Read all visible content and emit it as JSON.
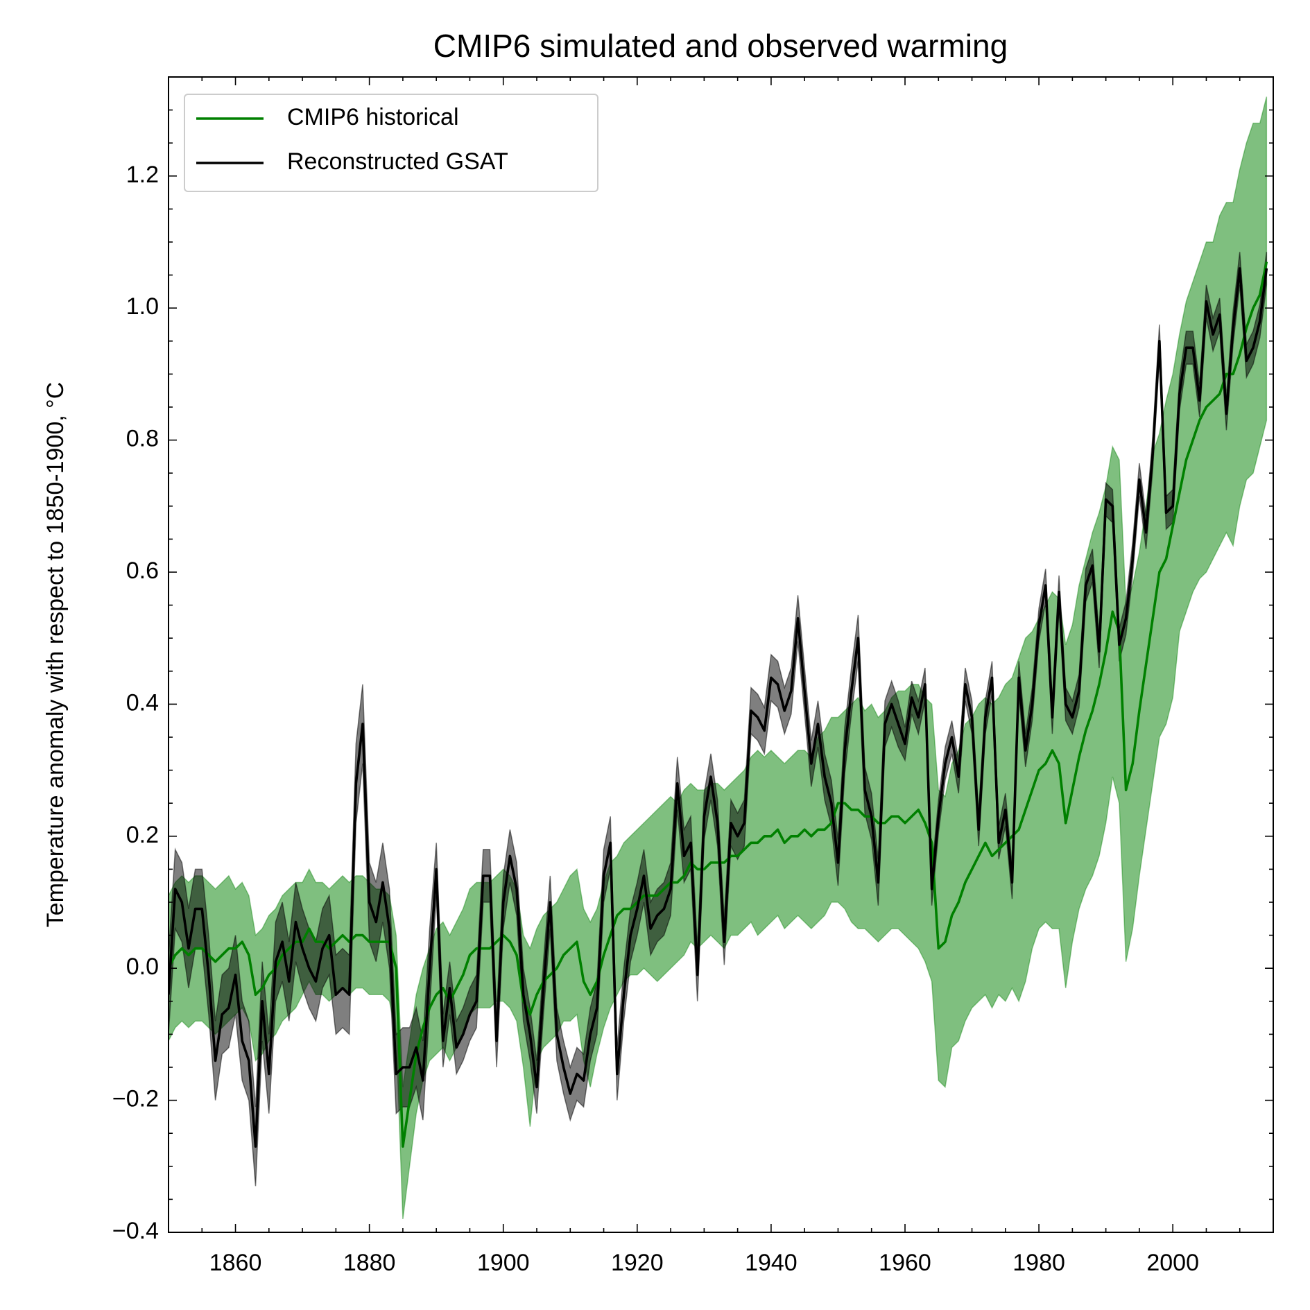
{
  "chart_data": {
    "type": "line",
    "title": "CMIP6 simulated and observed warming",
    "y_label": "Temperature anomaly with respect to 1850-1900, °C",
    "legend": "upper left",
    "xlim": [
      1850,
      2015
    ],
    "xticks": [
      1860,
      1880,
      1900,
      1920,
      1940,
      1960,
      1980,
      2000
    ],
    "xminorticks": [
      1850,
      1855,
      1865,
      1870,
      1875,
      1885,
      1890,
      1895,
      1905,
      1910,
      1915,
      1925,
      1930,
      1935,
      1945,
      1950,
      1955,
      1965,
      1970,
      1975,
      1985,
      1990,
      1995,
      2005,
      2010,
      2015
    ],
    "ylim": [
      -0.4,
      1.35
    ],
    "yticks": [
      {
        "value": -0.4,
        "label": "−0.4"
      },
      {
        "value": -0.2,
        "label": "−0.2"
      },
      {
        "value": 0,
        "label": "0.0"
      },
      0.2,
      0.4,
      0.6,
      0.8,
      {
        "value": 1,
        "label": "1.0"
      },
      1.2
    ],
    "yminorticks": [
      -0.35,
      -0.3,
      -0.25,
      -0.15,
      -0.1,
      -0.05,
      0.05,
      0.1,
      0.15,
      0.25,
      0.3,
      0.35,
      0.45,
      0.5,
      0.55,
      0.65,
      0.7,
      0.75,
      0.85,
      0.9,
      0.95,
      1.05,
      1.1,
      1.15,
      1.25,
      1.3,
      1.35
    ],
    "x": [
      1850,
      1851,
      1852,
      1853,
      1854,
      1855,
      1856,
      1857,
      1858,
      1859,
      1860,
      1861,
      1862,
      1863,
      1864,
      1865,
      1866,
      1867,
      1868,
      1869,
      1870,
      1871,
      1872,
      1873,
      1874,
      1875,
      1876,
      1877,
      1878,
      1879,
      1880,
      1881,
      1882,
      1883,
      1884,
      1885,
      1886,
      1887,
      1888,
      1889,
      1890,
      1891,
      1892,
      1893,
      1894,
      1895,
      1896,
      1897,
      1898,
      1899,
      1900,
      1901,
      1902,
      1903,
      1904,
      1905,
      1906,
      1907,
      1908,
      1909,
      1910,
      1911,
      1912,
      1913,
      1914,
      1915,
      1916,
      1917,
      1918,
      1919,
      1920,
      1921,
      1922,
      1923,
      1924,
      1925,
      1926,
      1927,
      1928,
      1929,
      1930,
      1931,
      1932,
      1933,
      1934,
      1935,
      1936,
      1937,
      1938,
      1939,
      1940,
      1941,
      1942,
      1943,
      1944,
      1945,
      1946,
      1947,
      1948,
      1949,
      1950,
      1951,
      1952,
      1953,
      1954,
      1955,
      1956,
      1957,
      1958,
      1959,
      1960,
      1961,
      1962,
      1963,
      1964,
      1965,
      1966,
      1967,
      1968,
      1969,
      1970,
      1971,
      1972,
      1973,
      1974,
      1975,
      1976,
      1977,
      1978,
      1979,
      1980,
      1981,
      1982,
      1983,
      1984,
      1985,
      1986,
      1987,
      1988,
      1989,
      1990,
      1991,
      1992,
      1993,
      1994,
      1995,
      1996,
      1997,
      1998,
      1999,
      2000,
      2001,
      2002,
      2003,
      2004,
      2005,
      2006,
      2007,
      2008,
      2009,
      2010,
      2011,
      2012,
      2013,
      2014
    ],
    "series": [
      {
        "name": "CMIP6 historical",
        "color": "#008000",
        "values": [
          0.0,
          0.02,
          0.03,
          0.02,
          0.03,
          0.03,
          0.02,
          0.01,
          0.02,
          0.03,
          0.03,
          0.04,
          0.02,
          -0.04,
          -0.03,
          -0.01,
          0.0,
          0.02,
          0.03,
          0.04,
          0.04,
          0.06,
          0.04,
          0.04,
          0.03,
          0.04,
          0.05,
          0.04,
          0.05,
          0.05,
          0.04,
          0.04,
          0.04,
          0.04,
          0.0,
          -0.27,
          -0.2,
          -0.13,
          -0.09,
          -0.06,
          -0.04,
          -0.03,
          -0.05,
          -0.03,
          -0.01,
          0.02,
          0.03,
          0.03,
          0.03,
          0.04,
          0.05,
          0.04,
          0.02,
          -0.05,
          -0.07,
          -0.04,
          -0.02,
          -0.01,
          0.0,
          0.02,
          0.03,
          0.04,
          -0.02,
          -0.04,
          -0.02,
          0.02,
          0.05,
          0.08,
          0.09,
          0.09,
          0.1,
          0.11,
          0.11,
          0.11,
          0.12,
          0.13,
          0.13,
          0.14,
          0.16,
          0.15,
          0.15,
          0.16,
          0.16,
          0.16,
          0.17,
          0.17,
          0.18,
          0.19,
          0.19,
          0.2,
          0.2,
          0.21,
          0.19,
          0.2,
          0.2,
          0.21,
          0.2,
          0.21,
          0.21,
          0.22,
          0.25,
          0.25,
          0.24,
          0.24,
          0.23,
          0.23,
          0.22,
          0.22,
          0.23,
          0.23,
          0.22,
          0.23,
          0.24,
          0.22,
          0.19,
          0.03,
          0.04,
          0.08,
          0.1,
          0.13,
          0.15,
          0.17,
          0.19,
          0.17,
          0.18,
          0.19,
          0.2,
          0.21,
          0.24,
          0.27,
          0.3,
          0.31,
          0.33,
          0.31,
          0.22,
          0.27,
          0.32,
          0.36,
          0.39,
          0.43,
          0.48,
          0.54,
          0.51,
          0.27,
          0.31,
          0.39,
          0.46,
          0.53,
          0.6,
          0.62,
          0.67,
          0.72,
          0.77,
          0.8,
          0.83,
          0.85,
          0.86,
          0.87,
          0.9,
          0.9,
          0.93,
          0.97,
          1.0,
          1.02,
          1.07
        ],
        "lower": [
          -0.11,
          -0.09,
          -0.08,
          -0.09,
          -0.08,
          -0.08,
          -0.09,
          -0.1,
          -0.09,
          -0.08,
          -0.07,
          -0.06,
          -0.08,
          -0.14,
          -0.13,
          -0.11,
          -0.1,
          -0.08,
          -0.07,
          -0.06,
          -0.04,
          -0.02,
          -0.04,
          -0.04,
          -0.05,
          -0.04,
          -0.03,
          -0.04,
          -0.03,
          -0.03,
          -0.04,
          -0.04,
          -0.04,
          -0.05,
          -0.1,
          -0.38,
          -0.3,
          -0.22,
          -0.17,
          -0.14,
          -0.13,
          -0.12,
          -0.14,
          -0.12,
          -0.1,
          -0.07,
          -0.06,
          -0.06,
          -0.06,
          -0.05,
          -0.05,
          -0.06,
          -0.08,
          -0.15,
          -0.24,
          -0.14,
          -0.12,
          -0.11,
          -0.1,
          -0.08,
          -0.08,
          -0.07,
          -0.14,
          -0.18,
          -0.13,
          -0.09,
          -0.06,
          -0.04,
          -0.02,
          -0.01,
          -0.01,
          0.0,
          -0.01,
          -0.02,
          -0.01,
          0.0,
          0.01,
          0.02,
          0.04,
          0.03,
          0.04,
          0.05,
          0.04,
          0.03,
          0.05,
          0.05,
          0.06,
          0.07,
          0.05,
          0.06,
          0.07,
          0.08,
          0.06,
          0.07,
          0.08,
          0.07,
          0.06,
          0.07,
          0.08,
          0.1,
          0.1,
          0.09,
          0.07,
          0.06,
          0.06,
          0.05,
          0.04,
          0.05,
          0.06,
          0.06,
          0.05,
          0.04,
          0.03,
          0.01,
          -0.02,
          -0.17,
          -0.18,
          -0.12,
          -0.11,
          -0.08,
          -0.06,
          -0.05,
          -0.04,
          -0.06,
          -0.04,
          -0.05,
          -0.03,
          -0.05,
          -0.02,
          0.03,
          0.06,
          0.07,
          0.06,
          0.06,
          -0.03,
          0.04,
          0.09,
          0.12,
          0.14,
          0.17,
          0.22,
          0.29,
          0.25,
          0.01,
          0.06,
          0.14,
          0.21,
          0.28,
          0.35,
          0.37,
          0.41,
          0.51,
          0.54,
          0.57,
          0.59,
          0.6,
          0.62,
          0.64,
          0.66,
          0.64,
          0.7,
          0.74,
          0.75,
          0.79,
          0.83
        ],
        "upper": [
          0.11,
          0.13,
          0.14,
          0.13,
          0.14,
          0.14,
          0.13,
          0.12,
          0.13,
          0.14,
          0.12,
          0.13,
          0.11,
          0.05,
          0.06,
          0.08,
          0.09,
          0.11,
          0.12,
          0.13,
          0.13,
          0.15,
          0.13,
          0.13,
          0.12,
          0.13,
          0.14,
          0.13,
          0.14,
          0.14,
          0.13,
          0.12,
          0.12,
          0.11,
          0.05,
          -0.18,
          -0.11,
          -0.04,
          0.0,
          0.03,
          0.06,
          0.07,
          0.05,
          0.07,
          0.09,
          0.12,
          0.13,
          0.13,
          0.13,
          0.14,
          0.15,
          0.14,
          0.12,
          0.05,
          0.03,
          0.06,
          0.08,
          0.09,
          0.1,
          0.12,
          0.14,
          0.15,
          0.09,
          0.07,
          0.09,
          0.13,
          0.16,
          0.17,
          0.19,
          0.2,
          0.21,
          0.22,
          0.23,
          0.24,
          0.25,
          0.26,
          0.25,
          0.27,
          0.28,
          0.27,
          0.27,
          0.28,
          0.28,
          0.27,
          0.28,
          0.29,
          0.3,
          0.32,
          0.33,
          0.32,
          0.33,
          0.32,
          0.31,
          0.32,
          0.33,
          0.33,
          0.32,
          0.35,
          0.36,
          0.38,
          0.38,
          0.39,
          0.4,
          0.41,
          0.39,
          0.4,
          0.38,
          0.39,
          0.41,
          0.42,
          0.42,
          0.43,
          0.43,
          0.41,
          0.4,
          0.27,
          0.26,
          0.31,
          0.33,
          0.37,
          0.38,
          0.4,
          0.41,
          0.4,
          0.41,
          0.43,
          0.44,
          0.47,
          0.5,
          0.51,
          0.53,
          0.55,
          0.57,
          0.56,
          0.49,
          0.52,
          0.58,
          0.62,
          0.66,
          0.69,
          0.73,
          0.79,
          0.77,
          0.55,
          0.58,
          0.63,
          0.7,
          0.78,
          0.81,
          0.86,
          0.9,
          0.96,
          1.01,
          1.04,
          1.07,
          1.1,
          1.1,
          1.14,
          1.16,
          1.16,
          1.21,
          1.25,
          1.28,
          1.28,
          1.32
        ]
      },
      {
        "name": "Reconstructed GSAT",
        "color": "#000000",
        "values": [
          -0.04,
          0.12,
          0.1,
          0.03,
          0.09,
          0.09,
          -0.01,
          -0.14,
          -0.07,
          -0.06,
          -0.01,
          -0.11,
          -0.14,
          -0.27,
          -0.05,
          -0.16,
          0.01,
          0.04,
          -0.02,
          0.07,
          0.03,
          0.0,
          -0.02,
          0.03,
          0.05,
          -0.04,
          -0.03,
          -0.04,
          0.28,
          0.37,
          0.1,
          0.07,
          0.13,
          0.06,
          -0.16,
          -0.15,
          -0.15,
          -0.12,
          -0.17,
          0.0,
          0.15,
          -0.11,
          -0.03,
          -0.12,
          -0.1,
          -0.07,
          -0.05,
          0.14,
          0.14,
          -0.11,
          0.1,
          0.17,
          0.12,
          -0.04,
          -0.1,
          -0.18,
          -0.03,
          0.1,
          -0.1,
          -0.15,
          -0.19,
          -0.16,
          -0.17,
          -0.1,
          -0.06,
          0.14,
          0.19,
          -0.16,
          -0.04,
          0.05,
          0.09,
          0.14,
          0.06,
          0.08,
          0.09,
          0.12,
          0.28,
          0.17,
          0.19,
          -0.01,
          0.23,
          0.29,
          0.22,
          0.04,
          0.22,
          0.2,
          0.22,
          0.39,
          0.38,
          0.36,
          0.44,
          0.43,
          0.39,
          0.42,
          0.53,
          0.42,
          0.31,
          0.37,
          0.29,
          0.25,
          0.16,
          0.33,
          0.42,
          0.5,
          0.27,
          0.23,
          0.13,
          0.37,
          0.4,
          0.37,
          0.34,
          0.41,
          0.38,
          0.43,
          0.12,
          0.23,
          0.31,
          0.35,
          0.29,
          0.43,
          0.38,
          0.21,
          0.38,
          0.44,
          0.19,
          0.24,
          0.13,
          0.44,
          0.33,
          0.4,
          0.52,
          0.58,
          0.38,
          0.57,
          0.4,
          0.38,
          0.42,
          0.58,
          0.61,
          0.48,
          0.71,
          0.7,
          0.49,
          0.53,
          0.62,
          0.74,
          0.66,
          0.78,
          0.95,
          0.69,
          0.7,
          0.87,
          0.94,
          0.94,
          0.86,
          1.01,
          0.96,
          0.99,
          0.84,
          0.97,
          1.06,
          0.92,
          0.94,
          0.98,
          1.06
        ],
        "errors": [
          0.06,
          0.06,
          0.06,
          0.06,
          0.06,
          0.06,
          0.06,
          0.06,
          0.06,
          0.06,
          0.06,
          0.06,
          0.06,
          0.06,
          0.06,
          0.06,
          0.06,
          0.06,
          0.06,
          0.06,
          0.06,
          0.06,
          0.06,
          0.06,
          0.06,
          0.06,
          0.06,
          0.06,
          0.06,
          0.06,
          0.06,
          0.06,
          0.06,
          0.06,
          0.06,
          0.06,
          0.06,
          0.06,
          0.06,
          0.06,
          0.04,
          0.04,
          0.04,
          0.04,
          0.04,
          0.04,
          0.04,
          0.04,
          0.04,
          0.04,
          0.04,
          0.04,
          0.04,
          0.04,
          0.04,
          0.04,
          0.04,
          0.04,
          0.04,
          0.04,
          0.04,
          0.04,
          0.04,
          0.04,
          0.04,
          0.04,
          0.04,
          0.04,
          0.04,
          0.04,
          0.04,
          0.04,
          0.04,
          0.04,
          0.04,
          0.04,
          0.04,
          0.04,
          0.04,
          0.04,
          0.035,
          0.035,
          0.035,
          0.035,
          0.035,
          0.035,
          0.035,
          0.035,
          0.035,
          0.035,
          0.035,
          0.035,
          0.035,
          0.035,
          0.035,
          0.035,
          0.035,
          0.035,
          0.035,
          0.035,
          0.035,
          0.035,
          0.035,
          0.035,
          0.035,
          0.035,
          0.035,
          0.035,
          0.035,
          0.035,
          0.025,
          0.025,
          0.025,
          0.025,
          0.025,
          0.025,
          0.025,
          0.025,
          0.025,
          0.025,
          0.025,
          0.025,
          0.025,
          0.025,
          0.025,
          0.025,
          0.025,
          0.025,
          0.025,
          0.025,
          0.025,
          0.025,
          0.025,
          0.025,
          0.025,
          0.025,
          0.025,
          0.025,
          0.025,
          0.025,
          0.025,
          0.025,
          0.025,
          0.025,
          0.025,
          0.025,
          0.025,
          0.025,
          0.025,
          0.025,
          0.025,
          0.025,
          0.025,
          0.025,
          0.025,
          0.025,
          0.025,
          0.025,
          0.025,
          0.025,
          0.025,
          0.025,
          0.025,
          0.025,
          0.025
        ]
      }
    ]
  }
}
